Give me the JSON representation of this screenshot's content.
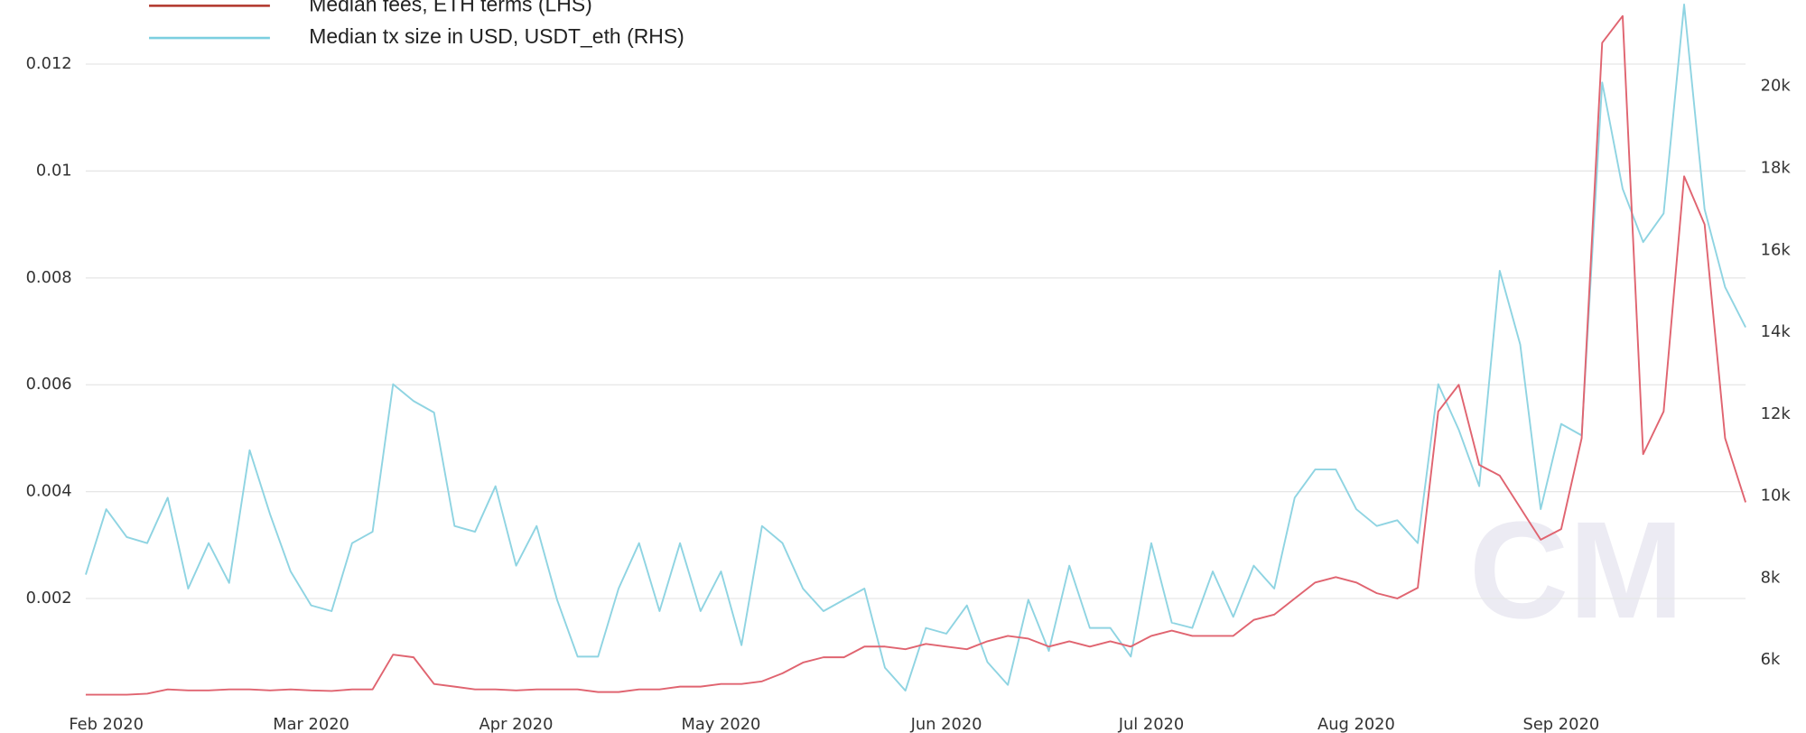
{
  "chart_data": {
    "type": "line",
    "watermark": "CM",
    "categories": [
      null,
      "Feb 2020",
      null,
      null,
      null,
      null,
      null,
      null,
      null,
      null,
      null,
      "Mar 2020",
      null,
      null,
      null,
      null,
      null,
      null,
      null,
      null,
      null,
      "Apr 2020",
      null,
      null,
      null,
      null,
      null,
      null,
      null,
      null,
      null,
      "May 2020",
      null,
      null,
      null,
      null,
      null,
      null,
      null,
      null,
      null,
      null,
      "Jun 2020",
      null,
      null,
      null,
      null,
      null,
      null,
      null,
      null,
      null,
      "Jul 2020",
      null,
      null,
      null,
      null,
      null,
      null,
      null,
      null,
      null,
      "Aug 2020",
      null,
      null,
      null,
      null,
      null,
      null,
      null,
      null,
      null,
      "Sep 2020",
      null,
      null,
      null,
      null,
      null,
      null,
      null,
      null,
      null
    ],
    "series": [
      {
        "name": "Median fees, ETH terms (LHS)",
        "color": "#e06470",
        "legend_color": "#b0352a",
        "values": [
          0.0002,
          0.0002,
          0.0002,
          0.00022,
          0.0003,
          0.00028,
          0.00028,
          0.0003,
          0.0003,
          0.00028,
          0.0003,
          0.00028,
          0.00027,
          0.0003,
          0.0003,
          0.00095,
          0.0009,
          0.0004,
          0.00035,
          0.0003,
          0.0003,
          0.00028,
          0.0003,
          0.0003,
          0.0003,
          0.00025,
          0.00025,
          0.0003,
          0.0003,
          0.00035,
          0.00035,
          0.0004,
          0.0004,
          0.00045,
          0.0006,
          0.0008,
          0.0009,
          0.0009,
          0.0011,
          0.0011,
          0.00105,
          0.00115,
          0.0011,
          0.00105,
          0.0012,
          0.0013,
          0.00125,
          0.0011,
          0.0012,
          0.0011,
          0.0012,
          0.0011,
          0.0013,
          0.0014,
          0.0013,
          0.0013,
          0.0013,
          0.0016,
          0.0017,
          0.002,
          0.0023,
          0.0024,
          0.0023,
          0.0021,
          0.002,
          0.0022,
          0.0055,
          0.006,
          0.0045,
          0.0043,
          0.0037,
          0.0031,
          0.0033,
          0.005,
          0.0124,
          0.0129,
          0.0047,
          0.0055,
          0.0099,
          0.009,
          0.005,
          0.0038
        ]
      },
      {
        "name": "Median tx size in USD, USDT_eth (RHS)",
        "color": "#8fd4e2",
        "legend_color": "#7ccfe0",
        "axis": "y2",
        "values": [
          8080,
          9680,
          9000,
          8850,
          9960,
          7740,
          8850,
          7880,
          11120,
          9550,
          8160,
          7330,
          7190,
          8850,
          9130,
          12730,
          12320,
          12040,
          9270,
          9130,
          10240,
          8300,
          9270,
          7470,
          6080,
          6080,
          7740,
          8850,
          7190,
          8850,
          7190,
          8160,
          6360,
          9270,
          8850,
          7740,
          7190,
          7470,
          7740,
          5810,
          5250,
          6780,
          6640,
          7330,
          5950,
          5390,
          7470,
          6220,
          8300,
          6780,
          6780,
          6080,
          8850,
          6910,
          6780,
          8160,
          7050,
          8300,
          7740,
          9960,
          10650,
          10650,
          9680,
          9270,
          9410,
          8850,
          12730,
          11620,
          10240,
          15500,
          13700,
          9680,
          11760,
          11480,
          20100,
          17500,
          16200,
          16900,
          22000,
          17000,
          15100,
          14120
        ]
      }
    ],
    "ylim": [
      0,
      0.0132
    ],
    "yticks": [
      0.002,
      0.004,
      0.006,
      0.008,
      0.01,
      0.012
    ],
    "y2lim": [
      4890,
      22110
    ],
    "y2ticks": [
      {
        "value": 6000,
        "label": "6k"
      },
      {
        "value": 8000,
        "label": "8k"
      },
      {
        "value": 10000,
        "label": "10k"
      },
      {
        "value": 12000,
        "label": "12k"
      },
      {
        "value": 14000,
        "label": "14k"
      },
      {
        "value": 16000,
        "label": "16k"
      },
      {
        "value": 18000,
        "label": "18k"
      },
      {
        "value": 20000,
        "label": "20k"
      }
    ],
    "grid": true
  }
}
